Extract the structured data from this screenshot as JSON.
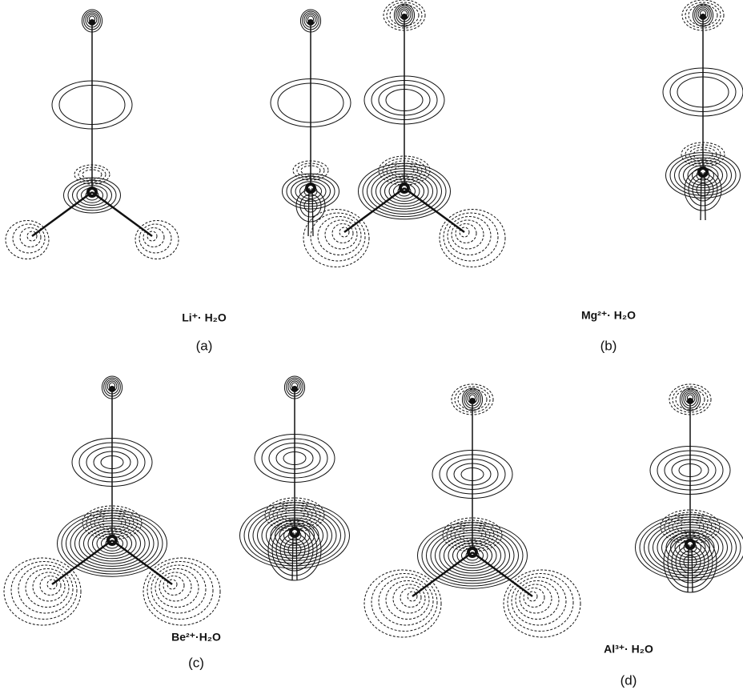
{
  "panels": [
    {
      "formula": "Li⁺· H₂O",
      "label": "(a)"
    },
    {
      "formula": "Mg²⁺· H₂O",
      "label": "(b)"
    },
    {
      "formula": "Be²⁺·H₂O",
      "label": "(c)"
    },
    {
      "formula": "Al³⁺· H₂O",
      "label": "(d)"
    }
  ]
}
